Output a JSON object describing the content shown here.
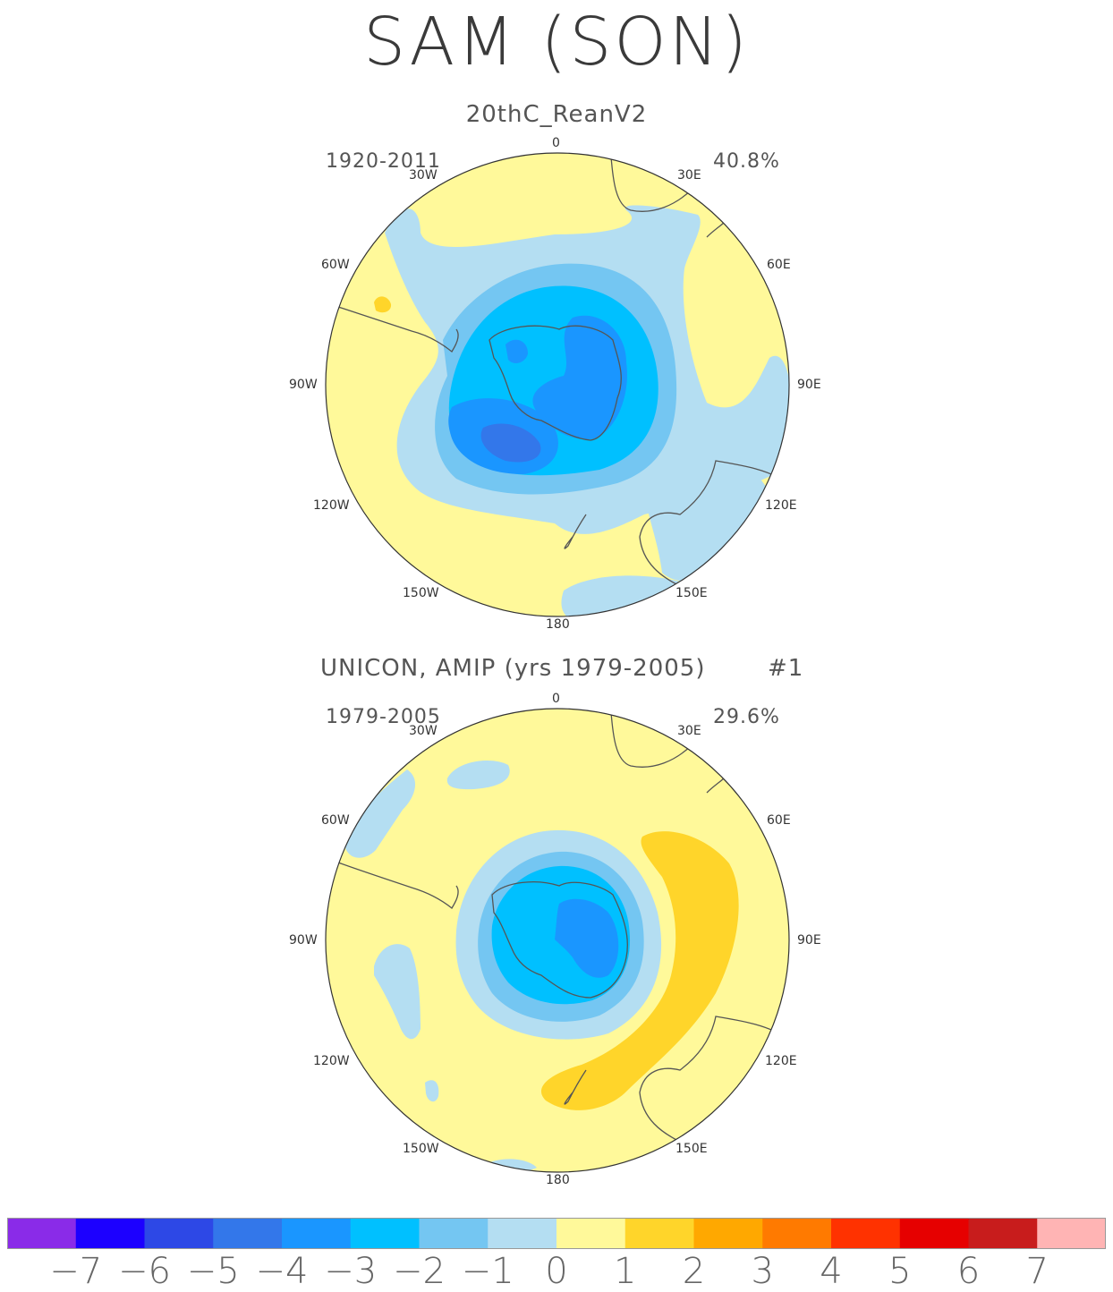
{
  "title": "SAM (SON)",
  "panels": [
    {
      "title": "20thC_ReanV2",
      "period": "1920-2011",
      "variance": "40.8%",
      "lon_labels": {
        "n": "0",
        "ne30": "30E",
        "ne60": "60E",
        "e90": "90E",
        "se120": "120E",
        "se150": "150E",
        "s": "180",
        "sw150": "150W",
        "sw120": "120W",
        "w90": "90W",
        "nw60": "60W",
        "nw30": "30W"
      }
    },
    {
      "title": "UNICON, AMIP (yrs 1979-2005)",
      "run": "#1",
      "period": "1979-2005",
      "variance": "29.6%",
      "lon_labels": {
        "n": "0",
        "ne30": "30E",
        "ne60": "60E",
        "e90": "90E",
        "se120": "120E",
        "se150": "150E",
        "s": "180",
        "sw150": "150W",
        "sw120": "120W",
        "w90": "90W",
        "nw60": "60W",
        "nw30": "30W"
      }
    }
  ],
  "colorbar": {
    "colors": [
      "#8a2be8",
      "#1c00ff",
      "#2d48e6",
      "#3377ea",
      "#1a96ff",
      "#00c0ff",
      "#74c6f2",
      "#b4def2",
      "#fff99a",
      "#ffd52a",
      "#ffa800",
      "#ff7a00",
      "#ff3200",
      "#e60000",
      "#c81c1c",
      "#ffb4b4"
    ],
    "labels": [
      "−7",
      "−6",
      "−5",
      "−4",
      "−3",
      "−2",
      "−1",
      "0",
      "1",
      "2",
      "3",
      "4",
      "5",
      "6",
      "7"
    ]
  }
}
